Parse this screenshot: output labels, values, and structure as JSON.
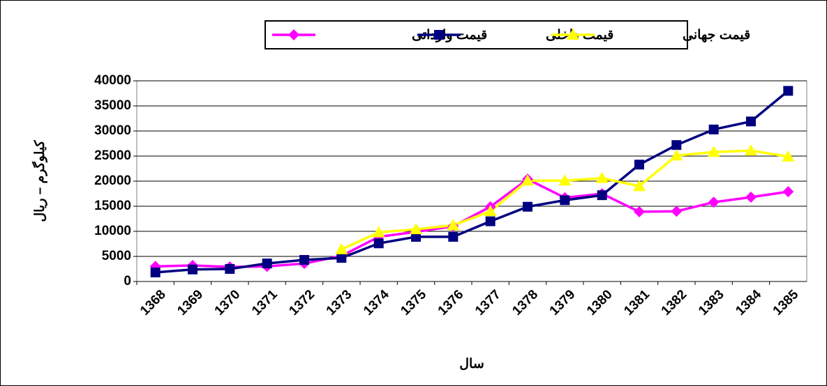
{
  "chart_data": {
    "type": "line",
    "categories": [
      "1368",
      "1369",
      "1370",
      "1371",
      "1372",
      "1373",
      "1374",
      "1375",
      "1376",
      "1377",
      "1378",
      "1379",
      "1380",
      "1381",
      "1382",
      "1383",
      "1384",
      "1385"
    ],
    "series": [
      {
        "name": "قیمت وارداتی",
        "color": "#ff00ff",
        "marker": "diamond",
        "values": [
          3000,
          3200,
          2900,
          3000,
          3600,
          5100,
          8900,
          9900,
          11000,
          14900,
          20400,
          16700,
          17500,
          13900,
          14000,
          15800,
          16800,
          17900
        ]
      },
      {
        "name": "قیمت داخلی",
        "color": "#000080",
        "marker": "square",
        "values": [
          1800,
          2400,
          2500,
          3600,
          4300,
          4700,
          7600,
          8900,
          8900,
          12000,
          14900,
          16200,
          17200,
          23300,
          27200,
          30300,
          31900,
          38000
        ]
      },
      {
        "name": "قیمت جهانی",
        "color": "#ffff00",
        "marker": "triangle",
        "values": [
          null,
          null,
          null,
          null,
          null,
          6400,
          9800,
          10400,
          11200,
          14000,
          20100,
          20100,
          20600,
          19000,
          25100,
          25800,
          26100,
          24900
        ]
      }
    ],
    "x_label": "سال",
    "y_label": "کیلوگرم – ریال",
    "ylim": [
      0,
      40000
    ],
    "yticks": [
      0,
      5000,
      10000,
      15000,
      20000,
      25000,
      30000,
      35000,
      40000
    ],
    "grid": true,
    "legend": "top"
  }
}
